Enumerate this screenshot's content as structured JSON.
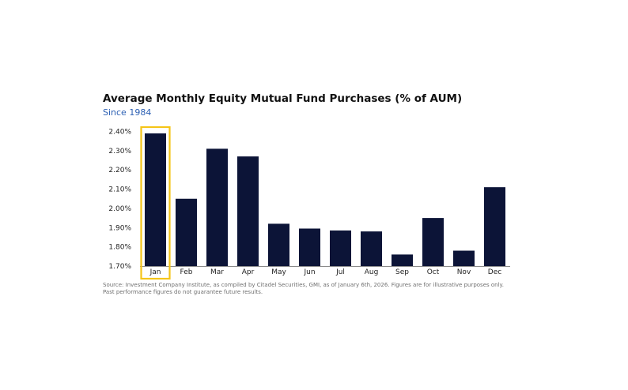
{
  "chart_data": {
    "type": "bar",
    "title": "Average Monthly Equity Mutual Fund Purchases (% of AUM)",
    "subtitle": "Since 1984",
    "categories": [
      "Jan",
      "Feb",
      "Mar",
      "Apr",
      "May",
      "Jun",
      "Jul",
      "Aug",
      "Sep",
      "Oct",
      "Nov",
      "Dec"
    ],
    "values": [
      2.39,
      2.05,
      2.31,
      2.27,
      1.92,
      1.895,
      1.885,
      1.88,
      1.76,
      1.95,
      1.78,
      2.11
    ],
    "yticks": [
      1.7,
      1.8,
      1.9,
      2.0,
      2.1,
      2.2,
      2.3,
      2.4
    ],
    "ytick_labels": [
      "1.70%",
      "1.80%",
      "1.90%",
      "2.00%",
      "2.10%",
      "2.20%",
      "2.30%",
      "2.40%"
    ],
    "ylim": [
      1.7,
      2.43
    ],
    "xlabel": "",
    "ylabel": "",
    "grid": false,
    "highlight_category": "Jan",
    "bar_color": "#0c1437",
    "highlight_color": "#f5c518"
  },
  "source": {
    "line1": "Source: Investment Company Institute, as compiled by Citadel Securities, GMI, as of January 6th, 2026. Figures are for illustrative purposes only.",
    "line2": "Past performance figures do not guarantee future results."
  }
}
